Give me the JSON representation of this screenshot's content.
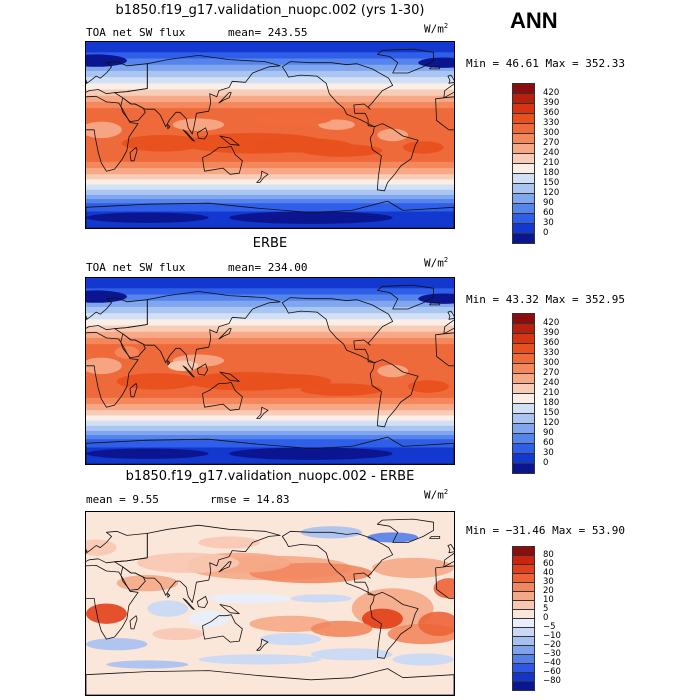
{
  "season": "ANN",
  "units_base": "W/m",
  "units_exp": "2",
  "panels": [
    {
      "id": "model",
      "title": "b1850.f19_g17.validation_nuopc.002 (yrs 1-30)",
      "var_label": "TOA net SW flux",
      "stat1": "mean= 243.55",
      "stat2": "",
      "minmax": "Min =  46.61 Max = 352.33",
      "colorbar_labels": [
        "420",
        "390",
        "360",
        "330",
        "300",
        "270",
        "240",
        "210",
        "180",
        "150",
        "120",
        "90",
        "60",
        "30",
        "0"
      ]
    },
    {
      "id": "obs",
      "title": "ERBE",
      "var_label": "TOA net SW flux",
      "stat1": "mean= 234.00",
      "stat2": "",
      "minmax": "Min =  43.32 Max = 352.95",
      "colorbar_labels": [
        "420",
        "390",
        "360",
        "330",
        "300",
        "270",
        "240",
        "210",
        "180",
        "150",
        "120",
        "90",
        "60",
        "30",
        "0"
      ]
    },
    {
      "id": "diff",
      "title": "b1850.f19_g17.validation_nuopc.002 - ERBE",
      "var_label": "",
      "stat1": "mean =   9.55",
      "stat2": "rmse =  14.83",
      "minmax": "Min = −31.46 Max =  53.90",
      "colorbar_labels": [
        "80",
        "60",
        "40",
        "30",
        "20",
        "10",
        "5",
        "0",
        "−5",
        "−10",
        "−20",
        "−30",
        "−40",
        "−60",
        "−80"
      ]
    }
  ],
  "colors": {
    "abs_scale": [
      "#8c0d0d",
      "#b5200f",
      "#d63412",
      "#e8501e",
      "#ef6a3a",
      "#f4875c",
      "#f7a886",
      "#f8cdb7",
      "#fbeee6",
      "#d2e0f6",
      "#abc5f2",
      "#7fa6ee",
      "#5584ec",
      "#2f5fe8",
      "#1238d0",
      "#0a158f"
    ],
    "diff_scale": [
      "#8c0d0d",
      "#c9240f",
      "#e2401a",
      "#ec6436",
      "#f2875e",
      "#f5a886",
      "#f8c8b3",
      "#fbe6da",
      "#e8eefb",
      "#c8d8f5",
      "#a6c0f0",
      "#7fa2ec",
      "#557fe8",
      "#2e58e0",
      "#1236c9",
      "#0a168f"
    ],
    "coastline": "#111111"
  }
}
